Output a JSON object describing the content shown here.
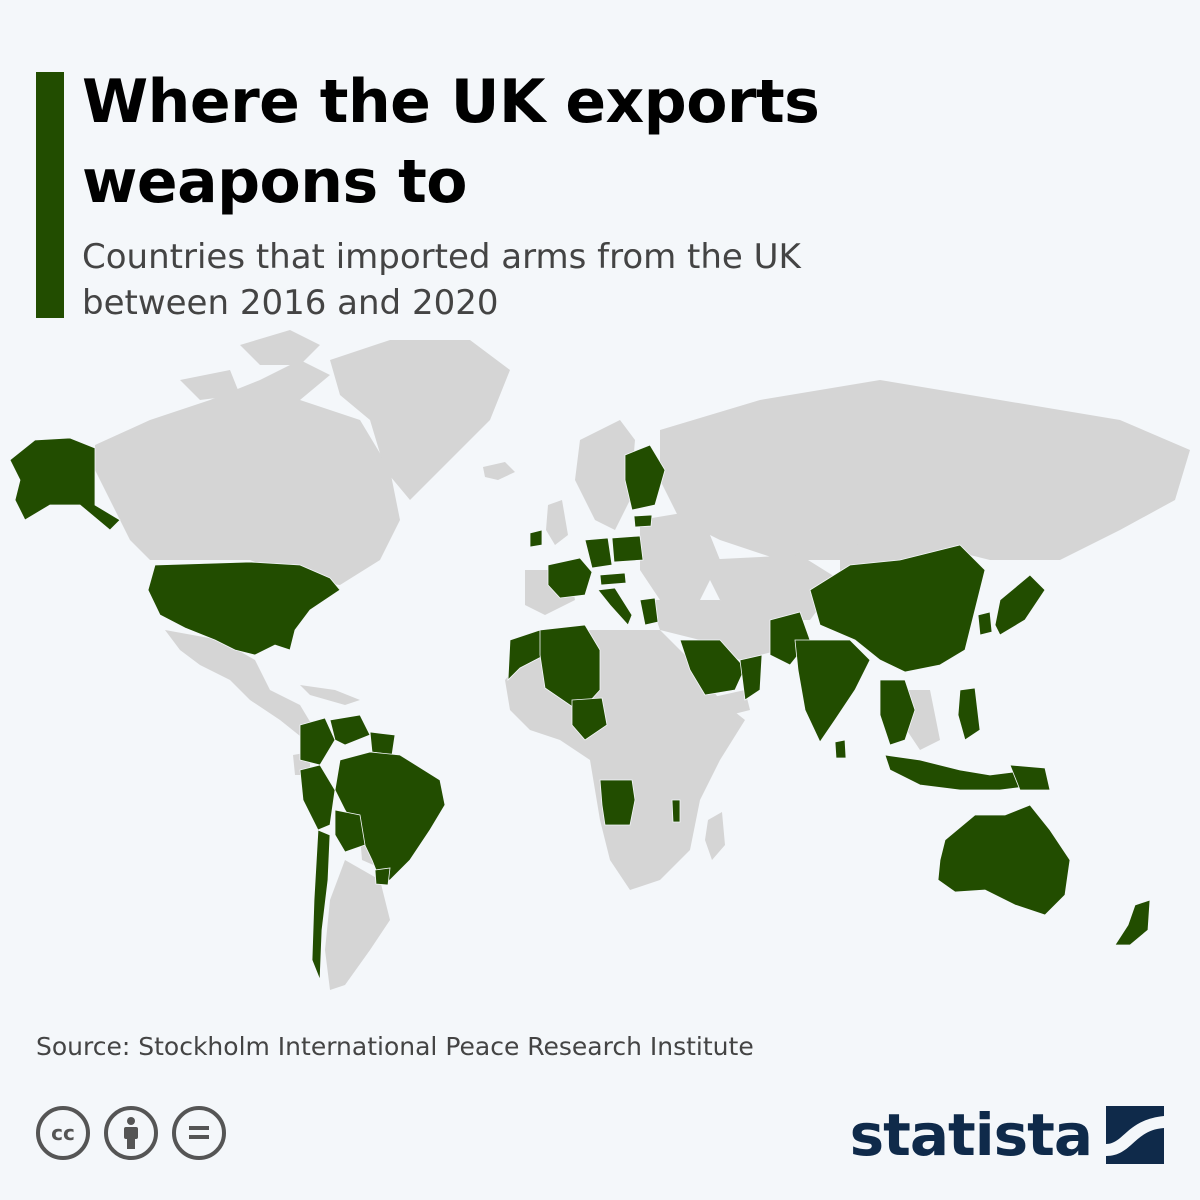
{
  "header": {
    "title": "Where the UK exports weapons to",
    "subtitle": "Countries that imported arms from the UK between 2016 and 2020"
  },
  "map": {
    "legend_meaning": "Countries that imported arms from the UK between 2016 and 2020",
    "colors": {
      "highlighted": "#224d00",
      "other": "#d5d5d5",
      "ocean": "#f4f7fa",
      "accent": "#224d00"
    },
    "highlighted_countries": [
      "Alaska (USA)",
      "United States",
      "Colombia",
      "Venezuela",
      "Guyana",
      "Suriname",
      "Brazil",
      "Peru",
      "Bolivia",
      "Chile",
      "Uruguay",
      "Ireland",
      "France",
      "Germany",
      "Netherlands",
      "Belgium",
      "Poland",
      "Latvia",
      "Finland",
      "Italy",
      "Austria",
      "Greece",
      "Bulgaria",
      "Morocco",
      "Algeria",
      "Nigeria",
      "Angola",
      "Malawi",
      "Saudi Arabia",
      "Qatar",
      "UAE",
      "Oman",
      "Pakistan",
      "India",
      "Nepal",
      "Bangladesh",
      "Sri Lanka",
      "China",
      "South Korea",
      "Japan",
      "Myanmar",
      "Thailand",
      "Malaysia",
      "Indonesia",
      "Philippines",
      "Brunei",
      "Papua New Guinea",
      "Australia",
      "New Zealand"
    ]
  },
  "footer": {
    "source": "Source: Stockholm International Peace Research Institute",
    "license_icons": [
      "cc-icon",
      "attribution-icon",
      "no-derivatives-icon"
    ],
    "brand": "statista"
  }
}
